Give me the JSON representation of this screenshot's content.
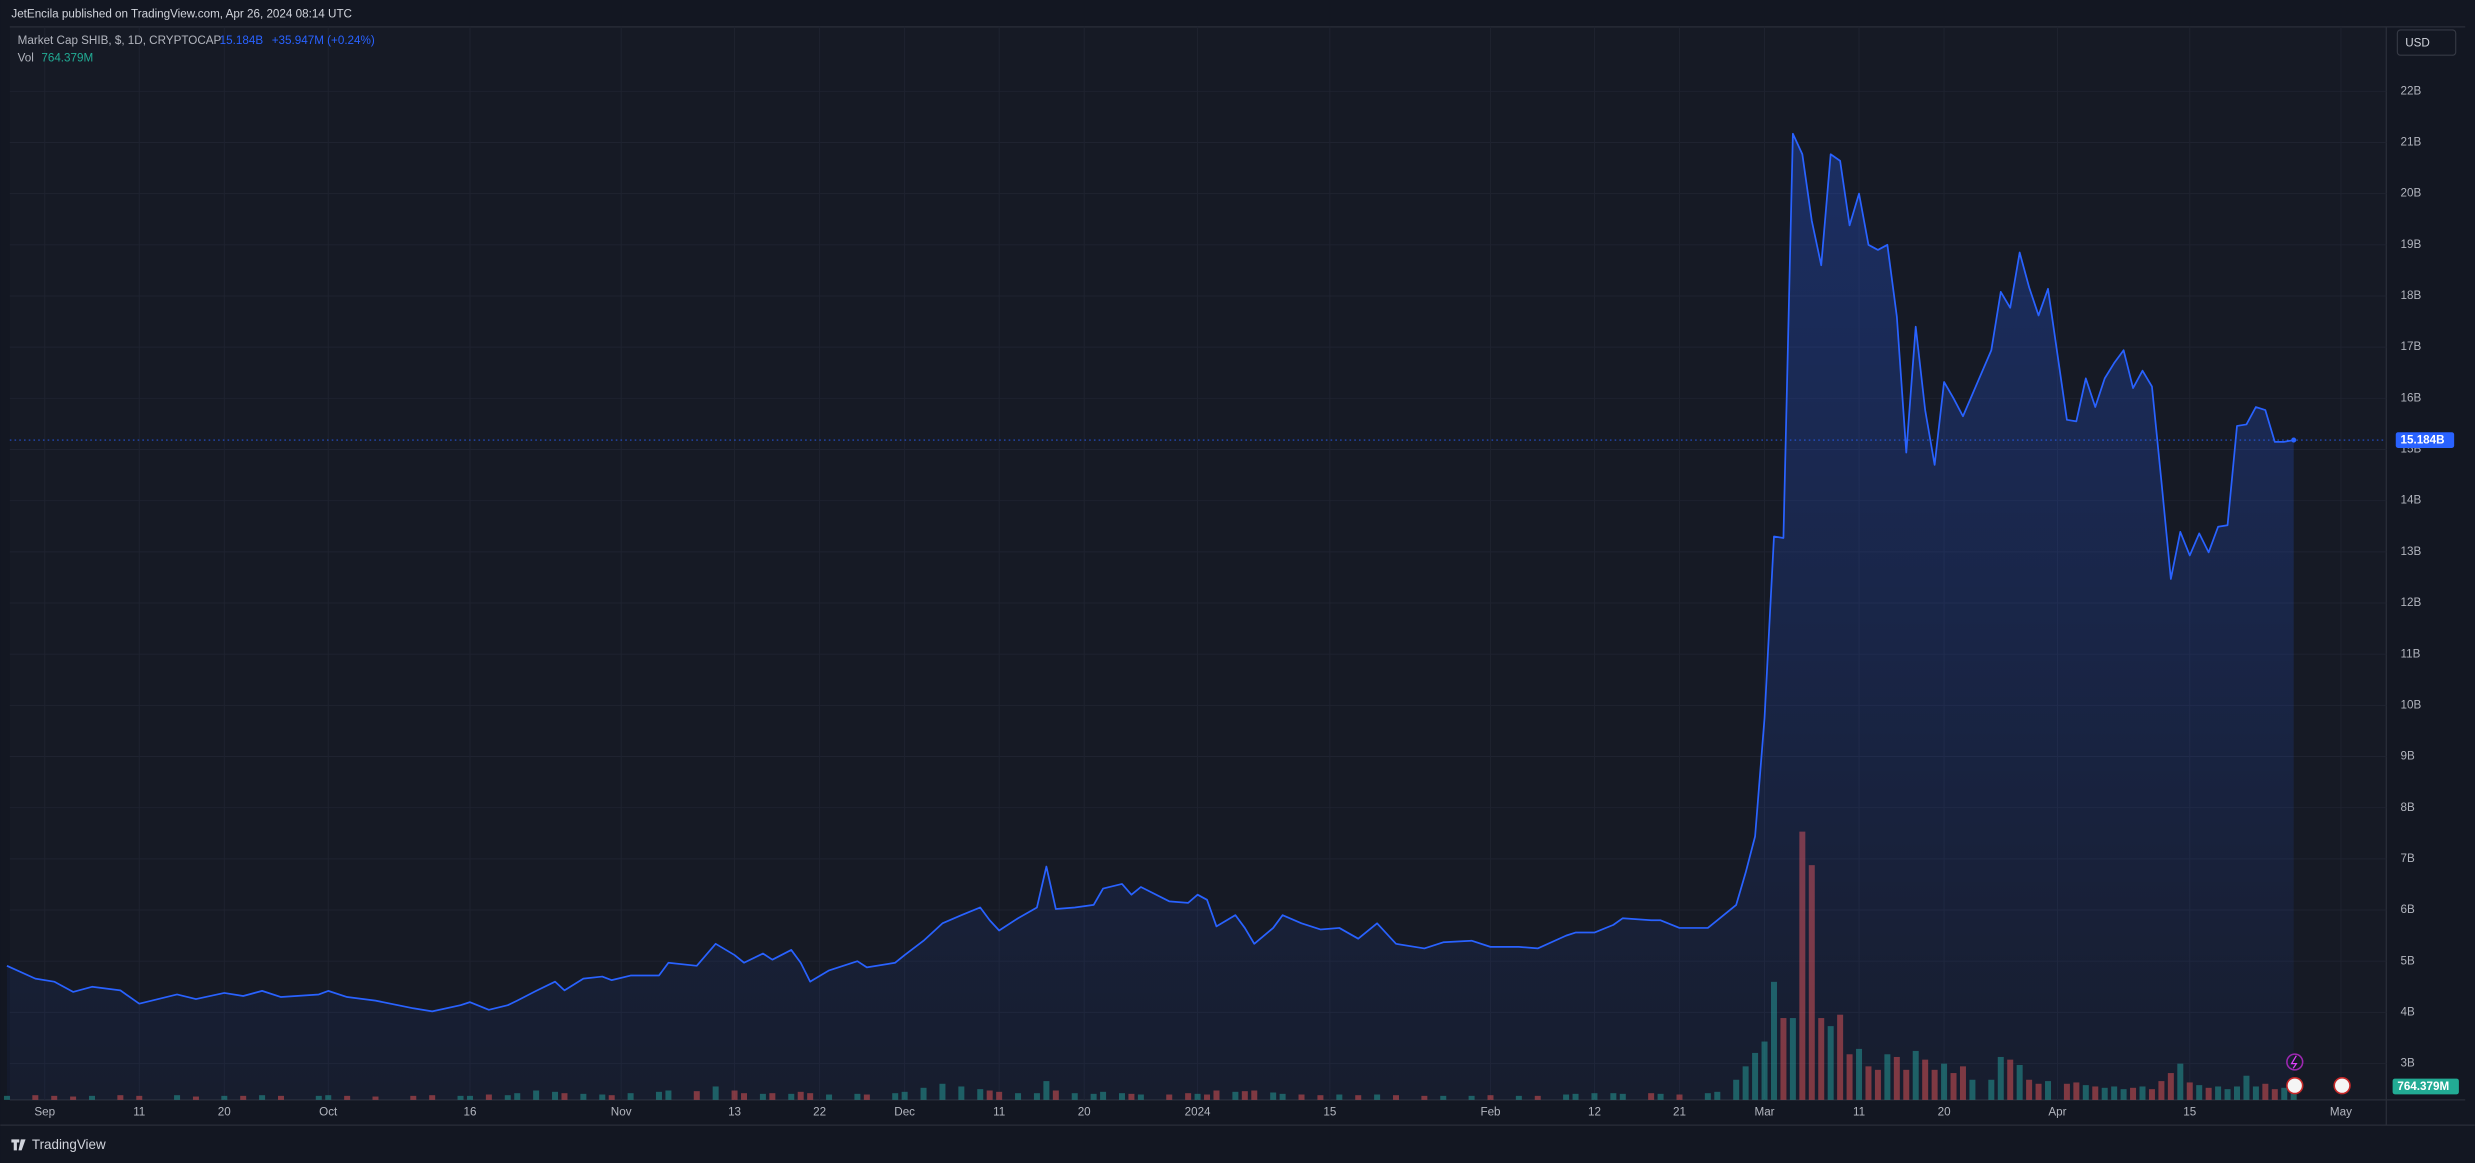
{
  "header": "JetEncila published on TradingView.com, Apr 26, 2024 08:14 UTC",
  "currency": "USD",
  "footer": "TradingView",
  "chart_data": {
    "type": "line",
    "grid": true,
    "change_label": "+35.947M (+0.24%)",
    "xlim": [
      0.3,
      251.8
    ],
    "ylim": [
      2.29,
      23.26
    ],
    "y2lim": [
      0,
      80000
    ],
    "xticks": [
      {
        "value": 4,
        "label": "Sep"
      },
      {
        "value": 14,
        "label": "11"
      },
      {
        "value": 23,
        "label": "20"
      },
      {
        "value": 34,
        "label": "Oct"
      },
      {
        "value": 49,
        "label": "16"
      },
      {
        "value": 65,
        "label": "Nov"
      },
      {
        "value": 77,
        "label": "13"
      },
      {
        "value": 86,
        "label": "22"
      },
      {
        "value": 95,
        "label": "Dec"
      },
      {
        "value": 105,
        "label": "11"
      },
      {
        "value": 114,
        "label": "20"
      },
      {
        "value": 126,
        "label": "2024"
      },
      {
        "value": 140,
        "label": "15"
      },
      {
        "value": 157,
        "label": "Feb"
      },
      {
        "value": 168,
        "label": "12"
      },
      {
        "value": 177,
        "label": "21"
      },
      {
        "value": 186,
        "label": "Mar"
      },
      {
        "value": 196,
        "label": "11"
      },
      {
        "value": 205,
        "label": "20"
      },
      {
        "value": 217,
        "label": "Apr"
      },
      {
        "value": 231,
        "label": "15"
      },
      {
        "value": 247,
        "label": "May"
      }
    ],
    "yticks": [
      {
        "value": 3,
        "label": "3B"
      },
      {
        "value": 4,
        "label": "4B"
      },
      {
        "value": 5,
        "label": "5B"
      },
      {
        "value": 6,
        "label": "6B"
      },
      {
        "value": 7,
        "label": "7B"
      },
      {
        "value": 8,
        "label": "8B"
      },
      {
        "value": 9,
        "label": "9B"
      },
      {
        "value": 10,
        "label": "10B"
      },
      {
        "value": 11,
        "label": "11B"
      },
      {
        "value": 12,
        "label": "12B"
      },
      {
        "value": 13,
        "label": "13B"
      },
      {
        "value": 14,
        "label": "14B"
      },
      {
        "value": 15,
        "label": "15B"
      },
      {
        "value": 16,
        "label": "16B"
      },
      {
        "value": 17,
        "label": "17B"
      },
      {
        "value": 18,
        "label": "18B"
      },
      {
        "value": 19,
        "label": "19B"
      },
      {
        "value": 20,
        "label": "20B"
      },
      {
        "value": 21,
        "label": "21B"
      },
      {
        "value": 22,
        "label": "22B"
      }
    ],
    "x": [
      0,
      3,
      5,
      7,
      9,
      12,
      14,
      18,
      20,
      23,
      25,
      27,
      29,
      33,
      34,
      36,
      39,
      43,
      45,
      48,
      49,
      51,
      53,
      54,
      56,
      58,
      59,
      61,
      63,
      64,
      66,
      69,
      70,
      73,
      75,
      77,
      78,
      80,
      81,
      83,
      84,
      85,
      87,
      90,
      91,
      94,
      95,
      97,
      99,
      101,
      103,
      104,
      105,
      107,
      109,
      110,
      111,
      113,
      115,
      116,
      118,
      119,
      120,
      123,
      125,
      126,
      127,
      128,
      130,
      131,
      132,
      134,
      135,
      137,
      139,
      141,
      143,
      145,
      147,
      150,
      152,
      155,
      157,
      160,
      162,
      165,
      166,
      168,
      170,
      171,
      174,
      175,
      177,
      180,
      181,
      183,
      184,
      185,
      186,
      187,
      188,
      189,
      190,
      191,
      192,
      193,
      194,
      195,
      196,
      197,
      198,
      199,
      200,
      201,
      202,
      203,
      204,
      205,
      206,
      207,
      208,
      210,
      211,
      212,
      213,
      214,
      215,
      216,
      218,
      219,
      220,
      221,
      222,
      223,
      224,
      225,
      226,
      227,
      228,
      229,
      230,
      231,
      232,
      233,
      234,
      235,
      236,
      237,
      238,
      239,
      240,
      241,
      242
    ],
    "series": [
      {
        "name": "Market Cap SHIB, $, 1D, CRYPTOCAP",
        "type": "line",
        "color": "#2962ff",
        "last_label": "15.184B",
        "values": [
          4.91,
          4.66,
          4.6,
          4.4,
          4.5,
          4.43,
          4.17,
          4.35,
          4.26,
          4.38,
          4.32,
          4.42,
          4.3,
          4.35,
          4.42,
          4.3,
          4.23,
          4.08,
          4.02,
          4.14,
          4.2,
          4.05,
          4.14,
          4.23,
          4.42,
          4.6,
          4.43,
          4.66,
          4.7,
          4.63,
          4.72,
          4.72,
          4.97,
          4.91,
          5.34,
          5.12,
          4.97,
          5.15,
          5.03,
          5.22,
          4.97,
          4.6,
          4.82,
          5.0,
          4.88,
          4.97,
          5.12,
          5.4,
          5.74,
          5.9,
          6.05,
          5.8,
          5.6,
          5.84,
          6.05,
          6.85,
          6.02,
          6.05,
          6.1,
          6.42,
          6.51,
          6.3,
          6.45,
          6.17,
          6.14,
          6.3,
          6.2,
          5.68,
          5.9,
          5.65,
          5.34,
          5.65,
          5.9,
          5.74,
          5.62,
          5.65,
          5.44,
          5.74,
          5.34,
          5.25,
          5.37,
          5.4,
          5.28,
          5.28,
          5.25,
          5.5,
          5.56,
          5.56,
          5.71,
          5.84,
          5.8,
          5.8,
          5.65,
          5.65,
          5.8,
          6.1,
          6.73,
          7.44,
          9.75,
          13.3,
          13.27,
          21.17,
          20.77,
          19.47,
          18.6,
          20.77,
          20.64,
          19.38,
          20.0,
          19.0,
          18.9,
          19.0,
          17.6,
          14.94,
          17.4,
          15.77,
          14.7,
          16.32,
          16.0,
          15.65,
          16.08,
          16.94,
          18.08,
          17.77,
          18.85,
          18.17,
          17.62,
          18.14,
          15.58,
          15.55,
          16.39,
          15.83,
          16.39,
          16.69,
          16.94,
          16.2,
          16.54,
          16.23,
          14.38,
          12.47,
          13.39,
          12.93,
          13.36,
          12.99,
          13.49,
          13.52,
          15.46,
          15.49,
          15.83,
          15.77,
          15.15,
          15.15,
          15.184
        ]
      },
      {
        "name": "Vol",
        "type": "bar",
        "axis": "y2",
        "up_color": "#26a69a",
        "down_color": "#ef5350",
        "label_color": "#22ab94",
        "last_label": "764.379M",
        "values": [
          300,
          350,
          300,
          250,
          300,
          350,
          300,
          350,
          250,
          300,
          300,
          350,
          300,
          300,
          350,
          300,
          250,
          300,
          350,
          300,
          300,
          400,
          350,
          500,
          700,
          600,
          500,
          450,
          400,
          350,
          500,
          600,
          700,
          650,
          1000,
          700,
          500,
          450,
          500,
          450,
          600,
          500,
          400,
          450,
          400,
          500,
          600,
          900,
          1200,
          1000,
          800,
          700,
          600,
          500,
          500,
          1400,
          700,
          500,
          450,
          600,
          500,
          450,
          400,
          400,
          500,
          450,
          400,
          700,
          600,
          650,
          700,
          550,
          450,
          400,
          350,
          400,
          350,
          400,
          350,
          300,
          300,
          300,
          350,
          300,
          300,
          400,
          450,
          500,
          500,
          450,
          500,
          450,
          400,
          500,
          600,
          1500,
          2500,
          3500,
          4350,
          8800,
          6100,
          6100,
          20000,
          17500,
          6100,
          5500,
          6350,
          3400,
          3800,
          2500,
          2240,
          3400,
          3200,
          2240,
          3650,
          3000,
          2240,
          2700,
          2000,
          2500,
          1500,
          1500,
          3200,
          3000,
          2600,
          1500,
          1200,
          1400,
          1200,
          1300,
          1100,
          1000,
          900,
          1000,
          800,
          900,
          1000,
          800,
          1400,
          2000,
          2700,
          1300,
          1100,
          900,
          1000,
          800,
          1000,
          1800,
          1000,
          1200,
          800,
          900,
          764.379
        ]
      }
    ]
  }
}
